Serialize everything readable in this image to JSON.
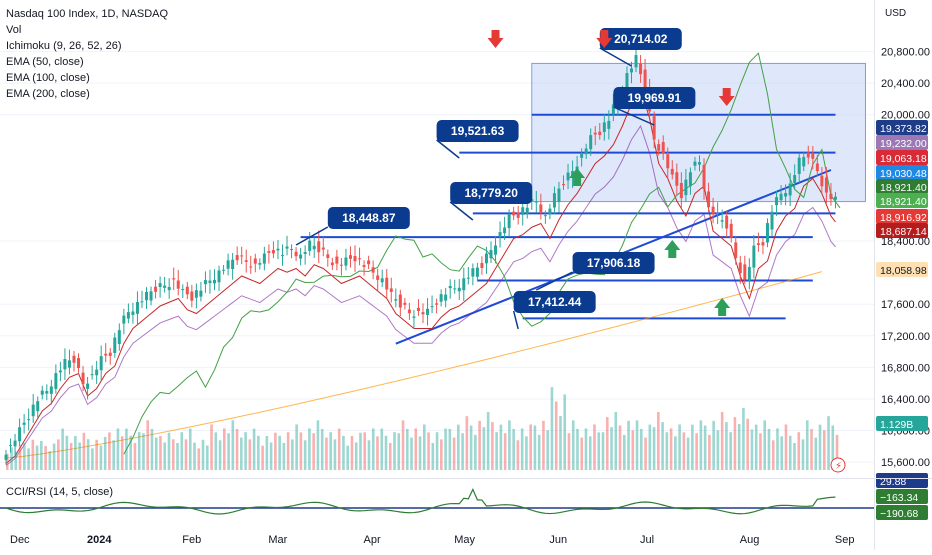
{
  "legend": {
    "title": "Nasdaq 100 Index, 1D, NASDAQ",
    "vol": "Vol",
    "ichimoku": "Ichimoku (9, 26, 52, 26)",
    "ema50": "EMA (50, close)",
    "ema100": "EMA (100, close)",
    "ema200": "EMA (200, close)"
  },
  "currency": "USD",
  "sub_legend": "CCI/RSI (14, 5, close)",
  "chart_data": {
    "type": "candlestick",
    "title": "Nasdaq 100 Index, 1D, NASDAQ",
    "ylim": [
      15500,
      21200
    ],
    "y_ticks": [
      {
        "v": 20800,
        "label": "20,800.00"
      },
      {
        "v": 20400,
        "label": "20,400.00"
      },
      {
        "v": 20000,
        "label": "20,000.00"
      },
      {
        "v": 18400,
        "label": "18,400.00"
      },
      {
        "v": 17600,
        "label": "17,600.00"
      },
      {
        "v": 17200,
        "label": "17,200.00"
      },
      {
        "v": 16800,
        "label": "16,800.00"
      },
      {
        "v": 16400,
        "label": "16,400.00"
      },
      {
        "v": 16000,
        "label": "16,000.00"
      },
      {
        "v": 15600,
        "label": "15,600.00"
      }
    ],
    "x_labels": [
      {
        "label": "Dec",
        "bold": false,
        "x": 0
      },
      {
        "label": "2024",
        "bold": true,
        "x": 17
      },
      {
        "label": "Feb",
        "bold": false,
        "x": 38
      },
      {
        "label": "Mar",
        "bold": false,
        "x": 57
      },
      {
        "label": "Apr",
        "bold": false,
        "x": 78
      },
      {
        "label": "May",
        "bold": false,
        "x": 98
      },
      {
        "label": "Jun",
        "bold": false,
        "x": 119
      },
      {
        "label": "Jul",
        "bold": false,
        "x": 139
      },
      {
        "label": "Aug",
        "bold": false,
        "x": 161
      },
      {
        "label": "Sep",
        "bold": false,
        "x": 182
      }
    ],
    "price_path": [
      [
        0,
        15700
      ],
      [
        2,
        15800
      ],
      [
        4,
        16000
      ],
      [
        6,
        16200
      ],
      [
        8,
        16400
      ],
      [
        10,
        16500
      ],
      [
        12,
        16700
      ],
      [
        14,
        16850
      ],
      [
        16,
        16900
      ],
      [
        18,
        16600
      ],
      [
        20,
        16700
      ],
      [
        22,
        16900
      ],
      [
        24,
        17000
      ],
      [
        26,
        17300
      ],
      [
        28,
        17500
      ],
      [
        30,
        17600
      ],
      [
        32,
        17700
      ],
      [
        34,
        17800
      ],
      [
        36,
        17850
      ],
      [
        38,
        17900
      ],
      [
        40,
        17750
      ],
      [
        42,
        17700
      ],
      [
        44,
        17800
      ],
      [
        46,
        17900
      ],
      [
        48,
        18000
      ],
      [
        50,
        18100
      ],
      [
        52,
        18200
      ],
      [
        54,
        18150
      ],
      [
        56,
        18100
      ],
      [
        58,
        18200
      ],
      [
        60,
        18300
      ],
      [
        62,
        18250
      ],
      [
        64,
        18300
      ],
      [
        66,
        18200
      ],
      [
        68,
        18350
      ],
      [
        70,
        18300
      ],
      [
        72,
        18200
      ],
      [
        74,
        18100
      ],
      [
        76,
        18150
      ],
      [
        78,
        18200
      ],
      [
        80,
        18100
      ],
      [
        82,
        18000
      ],
      [
        84,
        17900
      ],
      [
        86,
        17700
      ],
      [
        88,
        17600
      ],
      [
        90,
        17500
      ],
      [
        92,
        17500
      ],
      [
        94,
        17500
      ],
      [
        96,
        17650
      ],
      [
        98,
        17750
      ],
      [
        100,
        17800
      ],
      [
        102,
        17900
      ],
      [
        104,
        18000
      ],
      [
        106,
        18100
      ],
      [
        108,
        18300
      ],
      [
        110,
        18500
      ],
      [
        112,
        18700
      ],
      [
        114,
        18750
      ],
      [
        116,
        18850
      ],
      [
        118,
        18900
      ],
      [
        120,
        18700
      ],
      [
        122,
        18950
      ],
      [
        124,
        19150
      ],
      [
        126,
        19300
      ],
      [
        128,
        19500
      ],
      [
        130,
        19700
      ],
      [
        132,
        19800
      ],
      [
        134,
        19950
      ],
      [
        136,
        20200
      ],
      [
        138,
        20500
      ],
      [
        140,
        20700
      ],
      [
        142,
        20300
      ],
      [
        144,
        19700
      ],
      [
        146,
        19500
      ],
      [
        148,
        19200
      ],
      [
        150,
        19000
      ],
      [
        152,
        19300
      ],
      [
        154,
        19400
      ],
      [
        156,
        18800
      ],
      [
        158,
        18700
      ],
      [
        160,
        18600
      ],
      [
        162,
        18200
      ],
      [
        164,
        17900
      ],
      [
        166,
        18300
      ],
      [
        168,
        18400
      ],
      [
        170,
        18800
      ],
      [
        172,
        19000
      ],
      [
        174,
        19100
      ],
      [
        176,
        19400
      ],
      [
        178,
        19500
      ],
      [
        180,
        19300
      ],
      [
        182,
        19000
      ],
      [
        183,
        18920
      ]
    ],
    "volume_heights_relative": [
      0.3,
      0.4,
      0.35,
      0.5,
      0.45,
      0.4,
      0.55,
      0.5,
      0.6,
      0.45,
      0.5,
      0.4,
      0.55,
      0.6,
      0.5,
      0.45,
      0.5,
      0.55,
      0.6,
      0.5,
      0.45,
      0.55,
      0.5,
      0.6,
      0.55,
      0.5,
      0.6,
      0.65,
      0.7,
      0.6,
      0.55,
      0.65,
      1.0,
      0.6,
      0.55,
      0.7,
      0.65,
      0.6,
      0.7,
      0.55,
      0.6,
      0.65,
      0.7,
      0.75,
      0.6,
      0.55,
      0.5,
      0.6,
      0.65
    ],
    "annotations": [
      {
        "label": "20,714.02"
      },
      {
        "label": "19,969.91"
      },
      {
        "label": "19,521.63"
      },
      {
        "label": "18,779.20"
      },
      {
        "label": "18,448.87"
      },
      {
        "label": "17,906.18"
      },
      {
        "label": "17,412.44"
      }
    ],
    "axis_badges": [
      {
        "v": 19373.82,
        "label": "19,373.82",
        "color": "#1f3c88"
      },
      {
        "v": 19232.0,
        "label": "19,232.00",
        "color": "#9c79b5"
      },
      {
        "v": 19063.18,
        "label": "19,063.18",
        "color": "#d92b37"
      },
      {
        "v": 19030.48,
        "label": "19,030.48",
        "color": "#1e88e5"
      },
      {
        "v": 18921.4,
        "label": "18,921.40",
        "color": "#2e7d32"
      },
      {
        "v": 18921.4,
        "label": "18,921.40",
        "color": "#4caf50"
      },
      {
        "v": 18916.92,
        "label": "18,916.92",
        "color": "#e53935"
      },
      {
        "v": 18687.14,
        "label": "18,687.14",
        "color": "#b71c1c"
      },
      {
        "v": 18058.98,
        "label": "18,058.98",
        "color": "#ffe0b2"
      },
      {
        "v": 16100,
        "label": "1.129B",
        "color": "#26a69a"
      }
    ],
    "sub_badges": [
      {
        "label": "29.88",
        "color": "#1e3a8a"
      },
      {
        "label": "−163.34",
        "color": "#2e7d32"
      },
      {
        "label": "−190.68",
        "color": "#2e7d32"
      }
    ],
    "colors": {
      "up": "#26a69a",
      "down": "#ef5350",
      "box": "#c5d3f6",
      "line": "#1e4bd6",
      "annot": "#0a3b8f"
    }
  }
}
